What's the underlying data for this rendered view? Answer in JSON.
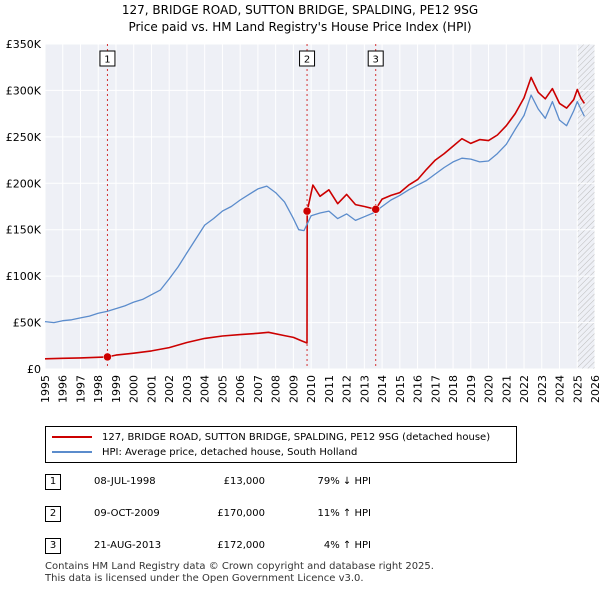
{
  "title": "127, BRIDGE ROAD, SUTTON BRIDGE, SPALDING, PE12 9SG",
  "subtitle": "Price paid vs. HM Land Registry's House Price Index (HPI)",
  "colors": {
    "property": "#cc0000",
    "hpi": "#5b8ccc",
    "marker_line": "#cc0000"
  },
  "chart_data": {
    "type": "line",
    "x_range": [
      1995,
      2026
    ],
    "y_range": [
      0,
      350000
    ],
    "x_ticks": [
      "1995",
      "1996",
      "1997",
      "1998",
      "1999",
      "2000",
      "2001",
      "2002",
      "2003",
      "2004",
      "2005",
      "2006",
      "2007",
      "2008",
      "2009",
      "2010",
      "2011",
      "2012",
      "2013",
      "2014",
      "2015",
      "2016",
      "2017",
      "2018",
      "2019",
      "2020",
      "2021",
      "2022",
      "2023",
      "2024",
      "2025",
      "2026"
    ],
    "y_ticks": [
      {
        "value": 0,
        "label": "£0"
      },
      {
        "value": 50000,
        "label": "£50K"
      },
      {
        "value": 100000,
        "label": "£100K"
      },
      {
        "value": 150000,
        "label": "£150K"
      },
      {
        "value": 200000,
        "label": "£200K"
      },
      {
        "value": 250000,
        "label": "£250K"
      },
      {
        "value": 300000,
        "label": "£300K"
      },
      {
        "value": 350000,
        "label": "£350K"
      }
    ],
    "series": [
      {
        "name": "property",
        "x": [
          1995.0,
          1996.0,
          1997.0,
          1998.52,
          1999,
          2000,
          2001,
          2002,
          2003,
          2004,
          2005,
          2006,
          2007,
          2007.6,
          2008.5,
          2009.0,
          2009.5,
          2009.77,
          2009.78,
          2010.1,
          2010.5,
          2011,
          2011.5,
          2012,
          2012.5,
          2013,
          2013.64,
          2014,
          2014.5,
          2015,
          2015.5,
          2016,
          2016.5,
          2017,
          2017.5,
          2018,
          2018.5,
          2019,
          2019.5,
          2020,
          2020.5,
          2021,
          2021.5,
          2022,
          2022.4,
          2022.8,
          2023.2,
          2023.6,
          2024,
          2024.4,
          2024.8,
          2025.0,
          2025.2,
          2025.4
        ],
        "y": [
          11000,
          11500,
          12000,
          13000,
          15000,
          17000,
          19500,
          23000,
          28500,
          33000,
          35500,
          37000,
          38500,
          39500,
          36000,
          34000,
          30000,
          28000,
          170000,
          198000,
          186000,
          193000,
          178000,
          188000,
          177000,
          175000,
          172000,
          183000,
          187000,
          190000,
          198000,
          204000,
          215000,
          225000,
          232000,
          240000,
          248000,
          243000,
          247000,
          246000,
          252000,
          262000,
          275000,
          292000,
          314000,
          298000,
          291000,
          302000,
          286000,
          281000,
          290000,
          301000,
          292000,
          286000
        ]
      },
      {
        "name": "hpi",
        "x": [
          1995.0,
          1995.5,
          1996,
          1996.5,
          1997,
          1997.5,
          1998,
          1998.5,
          1999,
          1999.5,
          2000,
          2000.5,
          2001,
          2001.5,
          2002,
          2002.5,
          2003,
          2003.5,
          2004,
          2004.5,
          2005,
          2005.5,
          2006,
          2006.5,
          2007,
          2007.5,
          2008,
          2008.5,
          2009,
          2009.3,
          2009.6,
          2010,
          2010.5,
          2011,
          2011.5,
          2012,
          2012.5,
          2013,
          2013.5,
          2014,
          2014.5,
          2015,
          2015.5,
          2016,
          2016.5,
          2017,
          2017.5,
          2018,
          2018.5,
          2019,
          2019.5,
          2020,
          2020.5,
          2021,
          2021.5,
          2022,
          2022.4,
          2022.8,
          2023.2,
          2023.6,
          2024,
          2024.4,
          2024.8,
          2025.0,
          2025.2,
          2025.4
        ],
        "y": [
          51000,
          50000,
          52000,
          53000,
          55000,
          57000,
          60000,
          62000,
          65000,
          68000,
          72000,
          75000,
          80000,
          85000,
          97000,
          110000,
          125000,
          140000,
          155000,
          162000,
          170000,
          175000,
          182000,
          188000,
          194000,
          197000,
          190000,
          180000,
          162000,
          150000,
          149000,
          165000,
          168000,
          170000,
          162000,
          167000,
          160000,
          164000,
          168000,
          175000,
          182000,
          187000,
          193000,
          198000,
          203000,
          210000,
          217000,
          223000,
          227000,
          226000,
          223000,
          224000,
          232000,
          242000,
          258000,
          273000,
          295000,
          280000,
          270000,
          288000,
          268000,
          262000,
          278000,
          288000,
          280000,
          272000
        ]
      }
    ],
    "sales": [
      {
        "label": "1",
        "x": 1998.52,
        "price": 13000
      },
      {
        "label": "2",
        "x": 2009.77,
        "price": 170000
      },
      {
        "label": "3",
        "x": 2013.64,
        "price": 172000
      }
    ],
    "forecast_start": 2025.0
  },
  "legend": {
    "property": "127, BRIDGE ROAD, SUTTON BRIDGE, SPALDING, PE12 9SG (detached house)",
    "hpi": "HPI: Average price, detached house, South Holland"
  },
  "sales_table": [
    {
      "num": "1",
      "date": "08-JUL-1998",
      "price": "£13,000",
      "hpi": "79% ↓ HPI"
    },
    {
      "num": "2",
      "date": "09-OCT-2009",
      "price": "£170,000",
      "hpi": "11% ↑ HPI"
    },
    {
      "num": "3",
      "date": "21-AUG-2013",
      "price": "£172,000",
      "hpi": "4% ↑ HPI"
    }
  ],
  "footer": {
    "line1": "Contains HM Land Registry data © Crown copyright and database right 2025.",
    "line2": "This data is licensed under the Open Government Licence v3.0."
  }
}
